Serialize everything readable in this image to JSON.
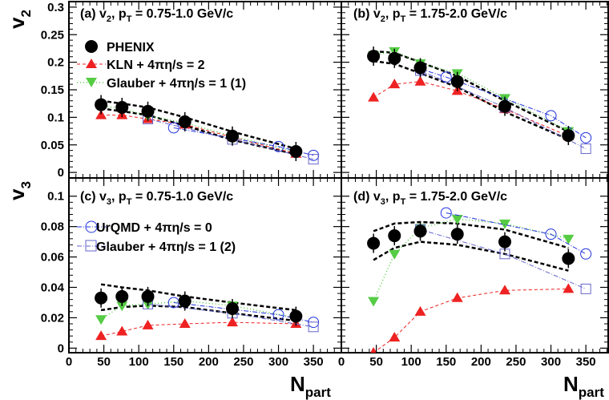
{
  "colors": {
    "phenix": "#000000",
    "kln": "#ee2222",
    "glauber1": "#55cc44",
    "urqmd": "#2233dd",
    "glauber2": "#6666cc",
    "band": "#000000",
    "frame": "#000000"
  },
  "axes": {
    "x_title_main": "N",
    "x_title_sub": "part",
    "y_title_top_main": "v",
    "y_title_top_sub": "2",
    "y_title_bottom_main": "v",
    "y_title_bottom_sub": "3",
    "xlim": [
      0,
      390
    ],
    "x_ticks": [
      "0",
      "50",
      "100",
      "150",
      "200",
      "250",
      "300",
      "350"
    ],
    "v2_ylim": [
      -0.01,
      0.31
    ],
    "v2_ticks": [
      "0",
      "0.05",
      "0.1",
      "0.15",
      "0.2",
      "0.25",
      "0.3"
    ],
    "v3_ylim": [
      -0.003,
      0.112
    ],
    "v3_ticks": [
      "0",
      "0.02",
      "0.04",
      "0.06",
      "0.08",
      "0.1"
    ]
  },
  "legend": {
    "phenix": "PHENIX",
    "kln": "KLN + 4πη/s = 2",
    "glauber1": "Glauber + 4πη/s = 1 (1)",
    "urqmd": "UrQMD + 4πη/s = 0",
    "glauber2": "Glauber + 4πη/s = 1 (2)"
  },
  "chart_data": [
    {
      "type": "scatter",
      "panel": "a",
      "label_main": "(a) v",
      "label_sub": "2",
      "label_mid": ", p",
      "label_sub2": "T",
      "label_tail": " = 0.75-1.0 GeV/c",
      "series": [
        {
          "name": "PHENIX",
          "x": [
            46,
            76,
            113,
            166,
            234,
            325
          ],
          "y": [
            0.123,
            0.118,
            0.111,
            0.092,
            0.066,
            0.038
          ]
        },
        {
          "name": "KLN + 4πη/s = 2",
          "x": [
            46,
            76,
            113,
            166,
            234,
            325
          ],
          "y": [
            0.104,
            0.104,
            0.097,
            0.087,
            0.064,
            0.034
          ]
        },
        {
          "name": "Glauber + 4πη/s = 1 (1)",
          "x": [
            46,
            76,
            113,
            166,
            234,
            325
          ],
          "y": [
            0.121,
            0.116,
            0.103,
            0.09,
            0.066,
            0.037
          ]
        },
        {
          "name": "UrQMD + 4πη/s = 0",
          "x": [
            150,
            300,
            350
          ],
          "y": [
            0.081,
            0.047,
            0.031
          ]
        },
        {
          "name": "Glauber + 4πη/s = 1 (2)",
          "x": [
            113,
            234,
            350
          ],
          "y": [
            0.097,
            0.06,
            0.024
          ]
        }
      ],
      "band_upper": [
        0.13,
        0.125,
        0.118,
        0.1,
        0.074,
        0.043
      ],
      "band_lower": [
        0.116,
        0.111,
        0.104,
        0.085,
        0.059,
        0.033
      ]
    },
    {
      "type": "scatter",
      "panel": "b",
      "label_main": "(b) v",
      "label_sub": "2",
      "label_mid": ", p",
      "label_sub2": "T",
      "label_tail": " = 1.75-2.0 GeV/c",
      "series": [
        {
          "name": "PHENIX",
          "x": [
            46,
            76,
            113,
            166,
            234,
            325
          ],
          "y": [
            0.211,
            0.207,
            0.19,
            0.165,
            0.12,
            0.067
          ]
        },
        {
          "name": "KLN + 4πη/s = 2",
          "x": [
            46,
            76,
            113,
            166,
            234,
            325
          ],
          "y": [
            0.136,
            0.16,
            0.165,
            0.148,
            0.115,
            0.066
          ]
        },
        {
          "name": "Glauber + 4πη/s = 1 (1)",
          "x": [
            46,
            76,
            113,
            166,
            234,
            325
          ],
          "y": [
            0.213,
            0.22,
            0.198,
            0.18,
            0.135,
            0.075
          ]
        },
        {
          "name": "UrQMD + 4πη/s = 0",
          "x": [
            113,
            150,
            300,
            350
          ],
          "y": [
            0.188,
            0.173,
            0.103,
            0.063
          ]
        },
        {
          "name": "Glauber + 4πη/s = 1 (2)",
          "x": [
            113,
            234,
            350
          ],
          "y": [
            0.185,
            0.118,
            0.043
          ]
        }
      ],
      "band_upper": [
        0.22,
        0.217,
        0.2,
        0.175,
        0.13,
        0.074
      ],
      "band_lower": [
        0.202,
        0.197,
        0.18,
        0.155,
        0.11,
        0.06
      ]
    },
    {
      "type": "scatter",
      "panel": "c",
      "label_main": "(c) v",
      "label_sub": "3",
      "label_mid": ", p",
      "label_sub2": "T",
      "label_tail": " = 0.75-1.0 GeV/c",
      "series": [
        {
          "name": "PHENIX",
          "x": [
            46,
            76,
            113,
            166,
            234,
            325
          ],
          "y": [
            0.033,
            0.034,
            0.034,
            0.031,
            0.026,
            0.021
          ]
        },
        {
          "name": "KLN + 4πη/s = 2",
          "x": [
            46,
            76,
            113,
            166,
            234,
            325
          ],
          "y": [
            0.008,
            0.011,
            0.015,
            0.016,
            0.017,
            0.016
          ]
        },
        {
          "name": "Glauber + 4πη/s = 1 (1)",
          "x": [
            46,
            76,
            113,
            166,
            234,
            325
          ],
          "y": [
            0.019,
            0.028,
            0.029,
            0.031,
            0.028,
            0.02
          ]
        },
        {
          "name": "UrQMD + 4πη/s = 0",
          "x": [
            150,
            300,
            350
          ],
          "y": [
            0.03,
            0.022,
            0.017
          ]
        },
        {
          "name": "Glauber + 4πη/s = 1 (2)",
          "x": [
            113,
            234,
            350
          ],
          "y": [
            0.029,
            0.023,
            0.014
          ]
        }
      ],
      "band_upper": [
        0.042,
        0.04,
        0.038,
        0.034,
        0.03,
        0.025
      ],
      "band_lower": [
        0.025,
        0.027,
        0.028,
        0.027,
        0.023,
        0.018
      ]
    },
    {
      "type": "scatter",
      "panel": "d",
      "label_main": "(d) v",
      "label_sub": "3",
      "label_mid": ", p",
      "label_sub2": "T",
      "label_tail": " = 1.75-2.0 GeV/c",
      "series": [
        {
          "name": "PHENIX",
          "x": [
            46,
            76,
            113,
            166,
            234,
            325
          ],
          "y": [
            0.069,
            0.074,
            0.077,
            0.075,
            0.07,
            0.059
          ]
        },
        {
          "name": "KLN + 4πη/s = 2",
          "x": [
            46,
            76,
            113,
            166,
            234,
            325
          ],
          "y": [
            -0.003,
            0.007,
            0.024,
            0.033,
            0.038,
            0.039
          ]
        },
        {
          "name": "Glauber + 4πη/s = 1 (1)",
          "x": [
            46,
            76,
            113,
            166,
            234,
            325
          ],
          "y": [
            0.031,
            0.062,
            0.079,
            0.085,
            0.082,
            0.072
          ]
        },
        {
          "name": "UrQMD + 4πη/s = 0",
          "x": [
            150,
            300,
            350
          ],
          "y": [
            0.089,
            0.075,
            0.062
          ]
        },
        {
          "name": "Glauber + 4πη/s = 1 (2)",
          "x": [
            113,
            234,
            350
          ],
          "y": [
            0.078,
            0.062,
            0.039
          ]
        }
      ],
      "band_upper": [
        0.077,
        0.082,
        0.083,
        0.082,
        0.078,
        0.066
      ],
      "band_lower": [
        0.058,
        0.066,
        0.07,
        0.068,
        0.062,
        0.051
      ]
    }
  ]
}
